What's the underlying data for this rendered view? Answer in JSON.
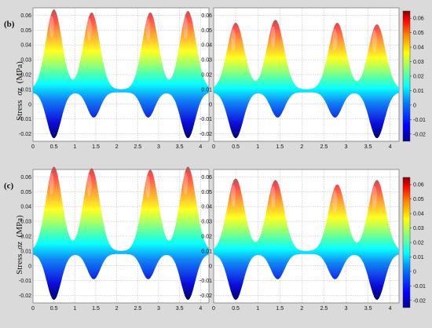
{
  "panels": [
    {
      "label": "(b)",
      "ylabel_text": "Stress",
      "ylabel_symbol": "σz",
      "ylabel_unit": "(MPa)"
    },
    {
      "label": "(c)",
      "ylabel_text": "Stress",
      "ylabel_symbol": "σz",
      "ylabel_unit": "(MPa)"
    }
  ],
  "colormap": [
    "#00008f",
    "#0000ff",
    "#0080ff",
    "#00ffff",
    "#80ff80",
    "#ffff00",
    "#ff8000",
    "#ff0000",
    "#800000"
  ],
  "chart_data": [
    {
      "type": "surface",
      "panel": "(b)",
      "position": "left",
      "xlim": [
        0,
        4.2
      ],
      "ylim": [
        -0.025,
        0.065
      ],
      "xticks": [
        "0",
        "0.5",
        "1",
        "1.5",
        "2",
        "2.5",
        "3",
        "3.5",
        "4"
      ],
      "yticks": [
        "-0.02",
        "-0.01",
        "0",
        "0.01",
        "0.02",
        "0.03",
        "0.04",
        "0.05",
        "0.06"
      ],
      "peaks_x": [
        0.5,
        1.4,
        2.8,
        3.7
      ],
      "peak_values": [
        0.064,
        0.062,
        0.062,
        0.063
      ],
      "trough_min": -0.023,
      "grid": true,
      "colorbar": false
    },
    {
      "type": "surface",
      "panel": "(b)",
      "position": "right",
      "xlim": [
        0,
        4.2
      ],
      "ylim": [
        -0.025,
        0.065
      ],
      "xticks": [
        "0",
        "0.5",
        "1",
        "1.5",
        "2",
        "2.5",
        "3",
        "3.5",
        "4"
      ],
      "yticks": [
        "-0.02",
        "-0.01",
        "0",
        "0.01",
        "0.02",
        "0.03",
        "0.04",
        "0.05",
        "0.06"
      ],
      "peaks_x": [
        0.5,
        1.4,
        2.8,
        3.7
      ],
      "peak_values": [
        0.055,
        0.057,
        0.055,
        0.054
      ],
      "trough_min": -0.023,
      "grid": true,
      "colorbar": true,
      "colorbar_range": [
        -0.025,
        0.065
      ],
      "colorbar_ticks": [
        "0.06",
        "0.05",
        "0.04",
        "0.03",
        "0.02",
        "0.01",
        "0",
        "-0.01",
        "-0.02"
      ]
    },
    {
      "type": "surface",
      "panel": "(c)",
      "position": "left",
      "xlim": [
        0,
        4.2
      ],
      "ylim": [
        -0.025,
        0.065
      ],
      "xticks": [
        "0",
        "0.5",
        "1",
        "1.5",
        "2",
        "2.5",
        "3",
        "3.5",
        "4"
      ],
      "yticks": [
        "-0.02",
        "-0.01",
        "0",
        "0.01",
        "0.02",
        "0.03",
        "0.04",
        "0.05",
        "0.06"
      ],
      "peaks_x": [
        0.5,
        1.4,
        2.8,
        3.7
      ],
      "peak_values": [
        0.067,
        0.066,
        0.065,
        0.067
      ],
      "trough_min": -0.023,
      "grid": true,
      "colorbar": false
    },
    {
      "type": "surface",
      "panel": "(c)",
      "position": "right",
      "xlim": [
        0,
        4.2
      ],
      "ylim": [
        -0.025,
        0.065
      ],
      "xticks": [
        "0",
        "0.5",
        "1",
        "1.5",
        "2",
        "2.5",
        "3",
        "3.5",
        "4"
      ],
      "yticks": [
        "-0.02",
        "-0.01",
        "0",
        "0.01",
        "0.02",
        "0.03",
        "0.04",
        "0.05",
        "0.06"
      ],
      "peaks_x": [
        0.5,
        1.4,
        2.8,
        3.7
      ],
      "peak_values": [
        0.059,
        0.058,
        0.055,
        0.058
      ],
      "trough_min": -0.023,
      "grid": true,
      "colorbar": true,
      "colorbar_range": [
        -0.025,
        0.065
      ],
      "colorbar_ticks": [
        "0.06",
        "0.05",
        "0.04",
        "0.03",
        "0.02",
        "0.01",
        "0",
        "-0.01",
        "-0.02"
      ]
    }
  ]
}
